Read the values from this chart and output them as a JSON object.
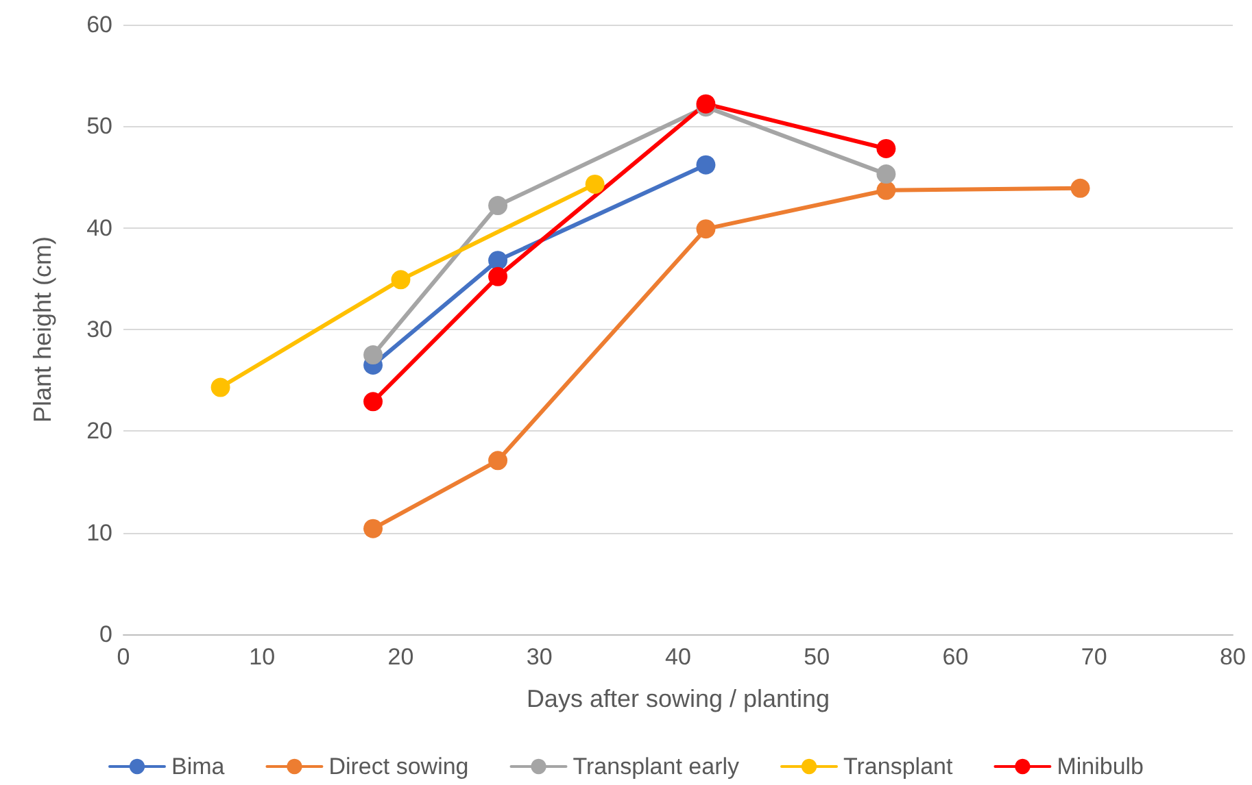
{
  "chart_data": {
    "type": "line",
    "xlabel": "Days after sowing / planting",
    "ylabel": "Plant height (cm)",
    "xlim": [
      0,
      80
    ],
    "xticks": [
      0,
      10,
      20,
      30,
      40,
      50,
      60,
      70,
      80
    ],
    "ylim": [
      0,
      60
    ],
    "yticks": [
      0,
      10,
      20,
      30,
      40,
      50,
      60
    ],
    "grid": "y",
    "legend": "bottom",
    "marker": "circle",
    "line_style": "solid",
    "series": [
      {
        "name": "Bima",
        "color": "#4472c4",
        "x": [
          18,
          27,
          42
        ],
        "values": [
          26.5,
          36.8,
          46.2
        ]
      },
      {
        "name": "Direct sowing",
        "color": "#ed7d31",
        "x": [
          18,
          27,
          42,
          55,
          69
        ],
        "values": [
          10.4,
          17.1,
          39.9,
          43.7,
          43.9
        ]
      },
      {
        "name": "Transplant early",
        "color": "#a5a5a5",
        "x": [
          18,
          27,
          42,
          55
        ],
        "values": [
          27.5,
          42.2,
          51.9,
          45.3
        ]
      },
      {
        "name": "Transplant",
        "color": "#ffc000",
        "x": [
          7,
          20,
          34
        ],
        "values": [
          24.3,
          34.9,
          44.3
        ]
      },
      {
        "name": "Minibulb",
        "color": "#ff0000",
        "x": [
          18,
          27,
          42,
          55
        ],
        "values": [
          22.9,
          35.2,
          52.2,
          47.8
        ]
      }
    ]
  }
}
